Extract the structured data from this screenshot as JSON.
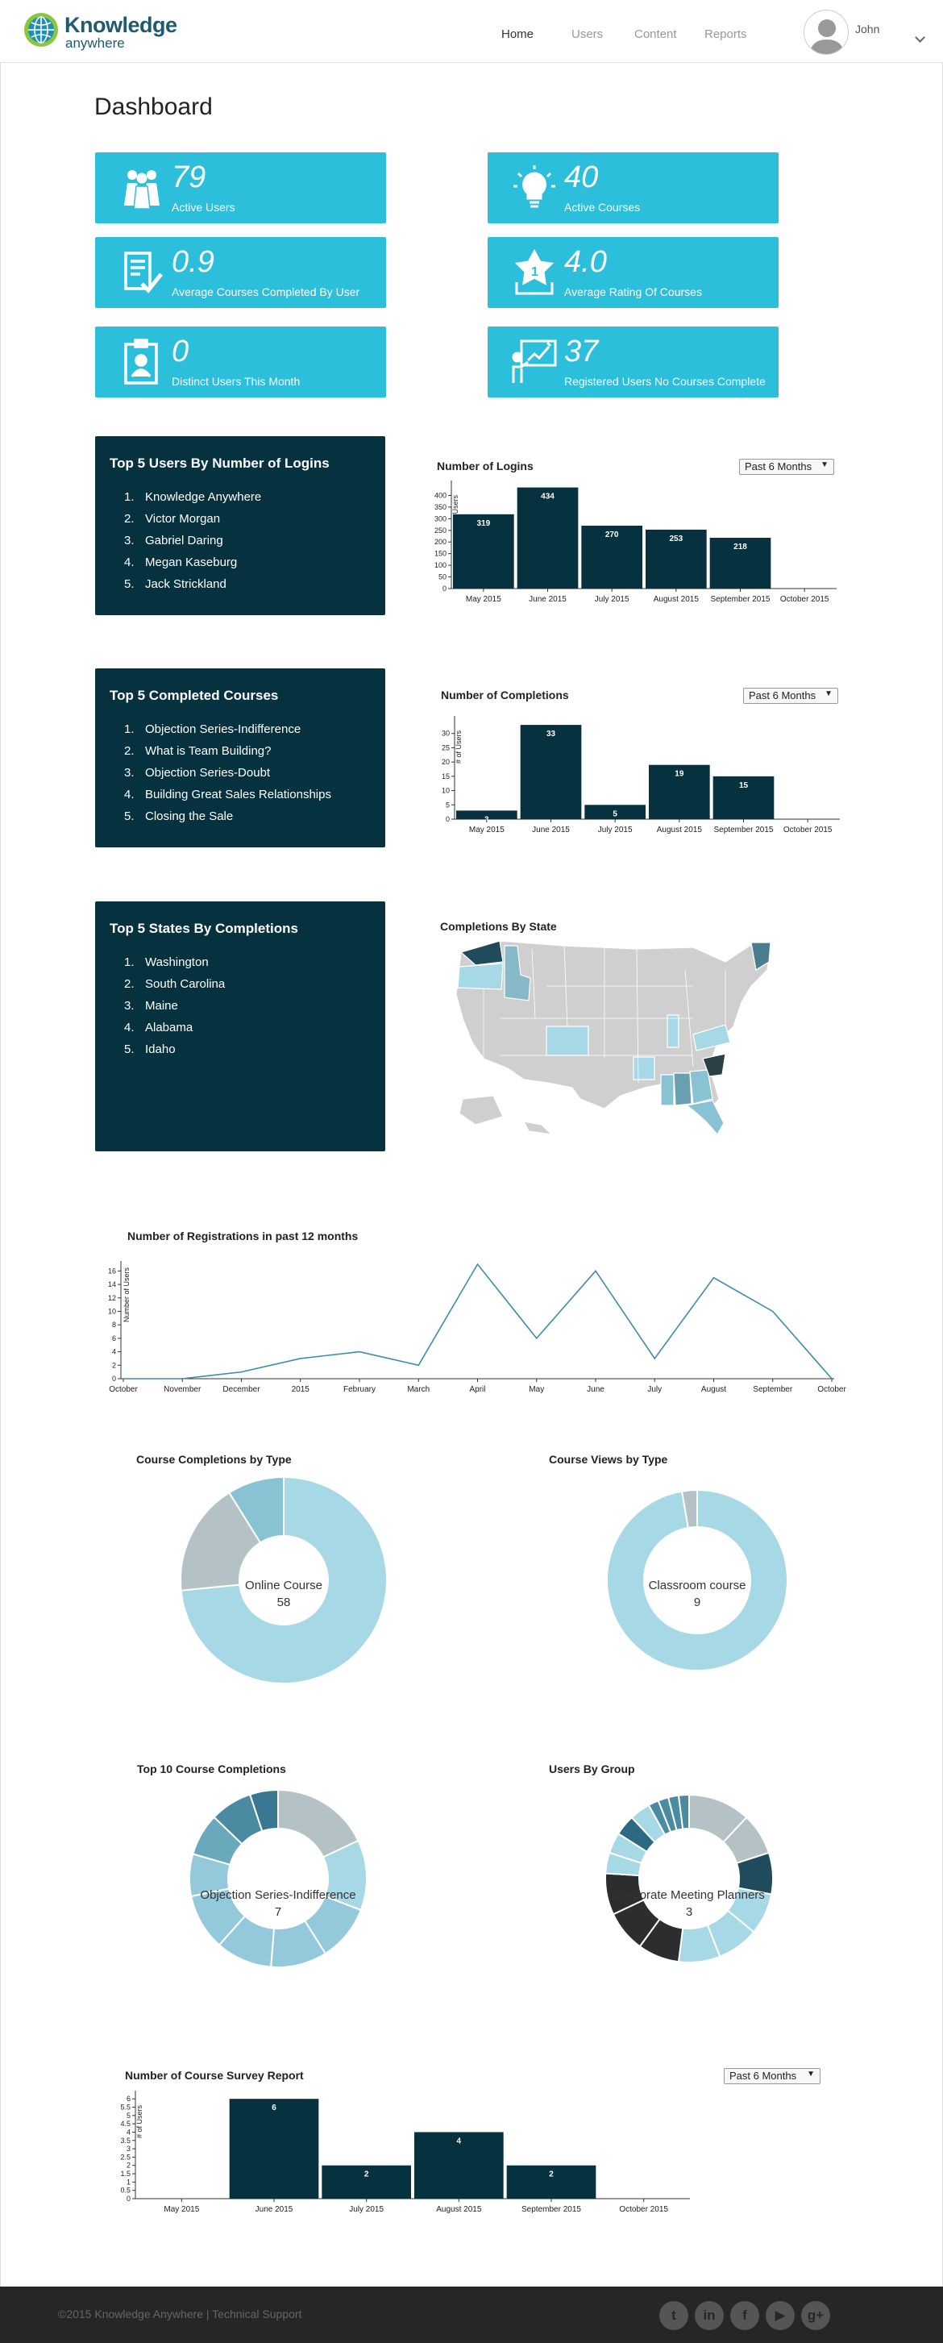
{
  "brand": {
    "line1": "Knowledge",
    "line2": "anywhere"
  },
  "nav": {
    "home": "Home",
    "users": "Users",
    "content": "Content",
    "reports": "Reports"
  },
  "user": {
    "name": "John"
  },
  "page_title": "Dashboard",
  "stats": {
    "active_users": {
      "value": "79",
      "label": "Active Users",
      "icon": "users-group-icon"
    },
    "active_courses": {
      "value": "40",
      "label": "Active Courses",
      "icon": "lightbulb-icon"
    },
    "avg_completed": {
      "value": "0.9",
      "label": "Average Courses Completed By User",
      "icon": "checklist-icon"
    },
    "avg_rating": {
      "value": "4.0",
      "label": "Average Rating Of Courses",
      "icon": "star-trophy-icon"
    },
    "distinct_users": {
      "value": "0",
      "label": "Distinct Users This Month",
      "icon": "id-badge-icon"
    },
    "no_complete": {
      "value": "37",
      "label": "Registered Users No Courses Complete",
      "icon": "presenter-board-icon"
    }
  },
  "top_users": {
    "title": "Top 5 Users By Number of Logins",
    "items": [
      "Knowledge Anywhere",
      "Victor Morgan",
      "Gabriel Daring",
      "Megan Kaseburg",
      "Jack Strickland"
    ]
  },
  "top_courses": {
    "title": "Top 5 Completed Courses",
    "items": [
      "Objection Series-Indifference",
      "What is Team Building?",
      "Objection Series-Doubt",
      "Building Great Sales Relationships",
      "Closing the Sale"
    ]
  },
  "top_states": {
    "title": "Top 5 States By Completions",
    "items": [
      "Washington",
      "South Carolina",
      "Maine",
      "Alabama",
      "Idaho"
    ]
  },
  "range_select": "Past 6 Months",
  "map_title": "Completions By State",
  "charts": {
    "logins": {
      "type": "bar",
      "title": "Number of Logins",
      "ylabel": "Users",
      "categories": [
        "May 2015",
        "June 2015",
        "July 2015",
        "August 2015",
        "September 2015",
        "October 2015"
      ],
      "values": [
        319,
        434,
        270,
        253,
        218,
        0
      ],
      "yticks": [
        0,
        50,
        100,
        150,
        200,
        250,
        300,
        350,
        400
      ],
      "ymax": 450
    },
    "completions": {
      "type": "bar",
      "title": "Number of Completions",
      "ylabel": "# of Users",
      "categories": [
        "May 2015",
        "June 2015",
        "July 2015",
        "August 2015",
        "September 2015",
        "October 2015"
      ],
      "values": [
        3,
        33,
        5,
        19,
        15,
        0
      ],
      "yticks": [
        0,
        5,
        10,
        15,
        20,
        25,
        30
      ],
      "ymax": 35
    },
    "registrations": {
      "type": "line",
      "title": "Number of Registrations in past 12 months",
      "ylabel": "Number of Users",
      "categories": [
        "October",
        "November",
        "December",
        "2015",
        "February",
        "March",
        "April",
        "May",
        "June",
        "July",
        "August",
        "September",
        "October"
      ],
      "values": [
        0,
        0,
        1,
        3,
        4,
        2,
        17,
        6,
        16,
        3,
        15,
        10,
        0
      ],
      "yticks": [
        0,
        2,
        4,
        6,
        8,
        10,
        12,
        14,
        16
      ],
      "ymax": 17
    },
    "survey": {
      "type": "bar",
      "title": "Number of Course Survey Report",
      "ylabel": "# of Users",
      "categories": [
        "May 2015",
        "June 2015",
        "July 2015",
        "August 2015",
        "September 2015",
        "October 2015"
      ],
      "values": [
        0,
        6,
        2,
        4,
        2,
        0
      ],
      "yticks": [
        0.0,
        0.5,
        1.0,
        1.5,
        2.0,
        2.5,
        3.0,
        3.5,
        4.0,
        4.5,
        5.0,
        5.5,
        6.0
      ],
      "ymax": 6.3
    }
  },
  "donuts": {
    "completions_by_type": {
      "title": "Course Completions by Type",
      "center_label": "Online Course",
      "center_value": "58",
      "slices": [
        58,
        14,
        7
      ],
      "colors": [
        "#a7d8e6",
        "#b4c2c6",
        "#88c2d3"
      ]
    },
    "views_by_type": {
      "title": "Course Views by Type",
      "center_label": "Classroom course",
      "center_value": "9",
      "slices": [
        9,
        0.25
      ],
      "colors": [
        "#a7d8e6",
        "#b4c2c6"
      ]
    },
    "top10": {
      "title": "Top 10 Course Completions",
      "center_label": "Objection Series-Indifference",
      "center_value": "7",
      "slices": [
        7,
        5,
        4,
        4,
        4,
        4,
        3,
        3,
        3,
        2
      ],
      "colors": [
        "#b4c2c6",
        "#a7d8e6",
        "#93c9da",
        "#93c9da",
        "#93c9da",
        "#93c9da",
        "#93c9da",
        "#6aa8bc",
        "#4a8ba2",
        "#3a7790"
      ]
    },
    "by_group": {
      "title": "Users By Group",
      "center_label": "Corporate Meeting Planners",
      "center_value": "3",
      "slices": [
        3,
        2,
        2,
        2,
        2,
        2,
        2,
        2,
        2,
        1,
        1,
        1,
        1,
        0.5,
        0.5,
        0.5,
        0.5
      ],
      "colors": [
        "#b4c2c6",
        "#b4c2c6",
        "#1f4b5c",
        "#a7d8e6",
        "#a7d8e6",
        "#a7d8e6",
        "#2b2d2e",
        "#2b2d2e",
        "#2b2d2e",
        "#a7d8e6",
        "#a7d8e6",
        "#2b6a82",
        "#a7d8e6",
        "#4a8ba2",
        "#4a8ba2",
        "#4a8ba2",
        "#4a8ba2"
      ]
    }
  },
  "footer": {
    "copyright": "©2015 Knowledge Anywhere | Technical Support",
    "social": [
      "twitter-icon",
      "linkedin-icon",
      "facebook-icon",
      "youtube-icon",
      "google-plus-icon"
    ]
  },
  "colors": {
    "accent": "#2bbfdb",
    "panel": "#06313f",
    "bar": "#06313f",
    "line": "#3d8ca8"
  }
}
